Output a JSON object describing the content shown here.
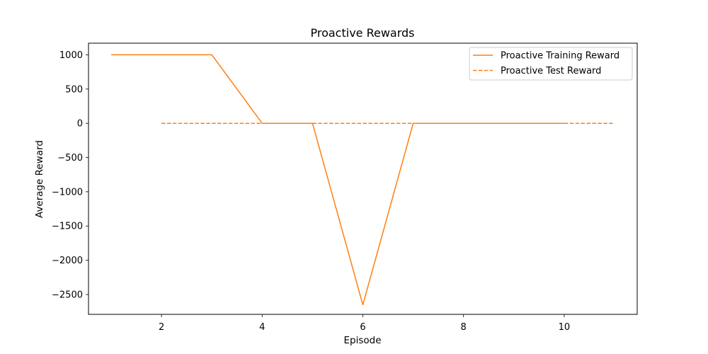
{
  "chart_data": {
    "type": "line",
    "title": "Proactive Rewards",
    "xlabel": "Episode",
    "ylabel": "Average Reward",
    "xlim": [
      0.55,
      11.45
    ],
    "ylim": [
      -2790,
      1170
    ],
    "xticks": [
      2,
      4,
      6,
      8,
      10
    ],
    "yticks": [
      1000,
      500,
      0,
      -500,
      -1000,
      -1500,
      -2000,
      -2500
    ],
    "grid": false,
    "legend_position": "top-right",
    "series": [
      {
        "name": "Proactive Training Reward",
        "style": "solid",
        "color": "#ff7f0e",
        "x": [
          1,
          2,
          3,
          4,
          5,
          6,
          7,
          8,
          9,
          10
        ],
        "y": [
          1000,
          1000,
          1000,
          0,
          0,
          -2650,
          0,
          0,
          0,
          0
        ]
      },
      {
        "name": "Proactive Test Reward",
        "style": "dashed",
        "color": "#ff7f0e",
        "x": [
          2,
          11
        ],
        "y": [
          0,
          0
        ]
      }
    ]
  }
}
